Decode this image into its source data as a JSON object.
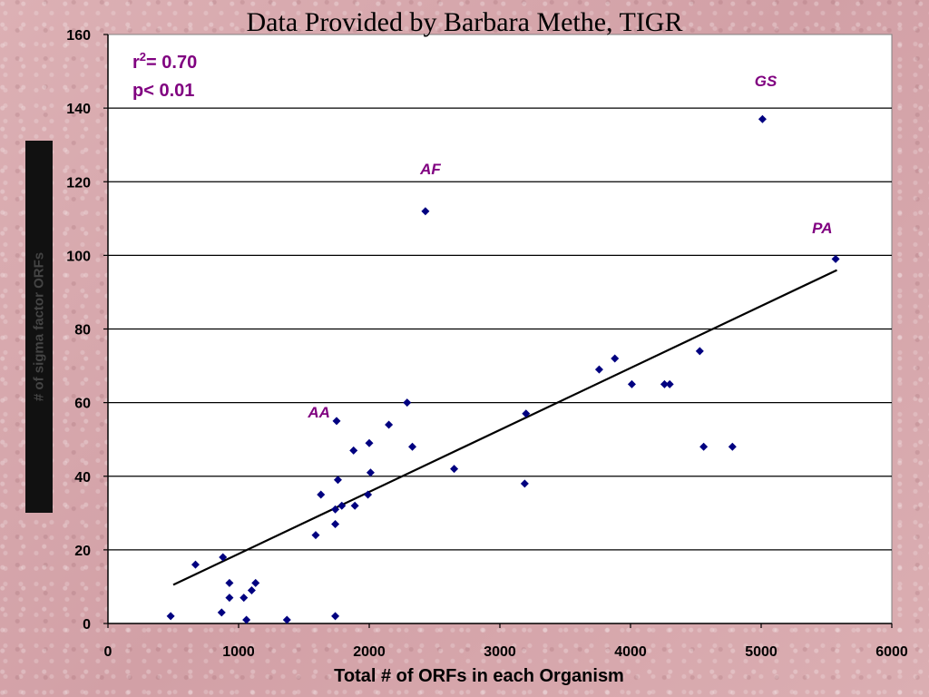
{
  "slide_title": "Data Provided by Barbara Methe, TIGR",
  "chart_data": {
    "type": "scatter",
    "xlabel": "Total # of ORFs in each Organism",
    "ylabel": "# of sigma factor ORFs",
    "xlim": [
      0,
      6000
    ],
    "ylim": [
      0,
      160
    ],
    "xticks": [
      0,
      1000,
      2000,
      3000,
      4000,
      5000,
      6000
    ],
    "yticks": [
      0,
      20,
      40,
      60,
      80,
      100,
      120,
      140,
      160
    ],
    "grid": "horizontal",
    "stats": {
      "r2_label": "r",
      "r2_sup": "2",
      "r2_value": "= 0.70",
      "p_text": "p< 0.01"
    },
    "trendline": {
      "x": [
        500,
        5580
      ],
      "y": [
        10.5,
        96
      ]
    },
    "points": [
      {
        "x": 480,
        "y": 2
      },
      {
        "x": 670,
        "y": 16
      },
      {
        "x": 870,
        "y": 3
      },
      {
        "x": 880,
        "y": 18
      },
      {
        "x": 930,
        "y": 7
      },
      {
        "x": 930,
        "y": 11
      },
      {
        "x": 1040,
        "y": 7
      },
      {
        "x": 1060,
        "y": 1
      },
      {
        "x": 1100,
        "y": 9
      },
      {
        "x": 1130,
        "y": 11
      },
      {
        "x": 1370,
        "y": 1
      },
      {
        "x": 1590,
        "y": 24
      },
      {
        "x": 1630,
        "y": 35
      },
      {
        "x": 1740,
        "y": 2
      },
      {
        "x": 1740,
        "y": 27
      },
      {
        "x": 1740,
        "y": 31
      },
      {
        "x": 1750,
        "y": 55
      },
      {
        "x": 1760,
        "y": 39
      },
      {
        "x": 1790,
        "y": 32
      },
      {
        "x": 1880,
        "y": 47
      },
      {
        "x": 1890,
        "y": 32
      },
      {
        "x": 1990,
        "y": 35
      },
      {
        "x": 2000,
        "y": 49
      },
      {
        "x": 2010,
        "y": 41
      },
      {
        "x": 2150,
        "y": 54
      },
      {
        "x": 2290,
        "y": 60
      },
      {
        "x": 2330,
        "y": 48
      },
      {
        "x": 2430,
        "y": 112
      },
      {
        "x": 2650,
        "y": 42
      },
      {
        "x": 3190,
        "y": 38
      },
      {
        "x": 3200,
        "y": 57
      },
      {
        "x": 3760,
        "y": 69
      },
      {
        "x": 3880,
        "y": 72
      },
      {
        "x": 4010,
        "y": 65
      },
      {
        "x": 4260,
        "y": 65
      },
      {
        "x": 4300,
        "y": 65
      },
      {
        "x": 4530,
        "y": 74
      },
      {
        "x": 4560,
        "y": 48
      },
      {
        "x": 4780,
        "y": 48
      },
      {
        "x": 5010,
        "y": 137
      },
      {
        "x": 5570,
        "y": 99
      }
    ],
    "annotations": [
      {
        "text": "AA",
        "x": 1530,
        "y": 56
      },
      {
        "text": "AF",
        "x": 2390,
        "y": 122
      },
      {
        "text": "GS",
        "x": 4950,
        "y": 146
      },
      {
        "text": "PA",
        "x": 5390,
        "y": 106
      }
    ],
    "colors": {
      "point": "#000080",
      "annotation": "#800080",
      "trendline": "#000000",
      "grid": "#000000",
      "plot_bg": "#ffffff"
    }
  }
}
